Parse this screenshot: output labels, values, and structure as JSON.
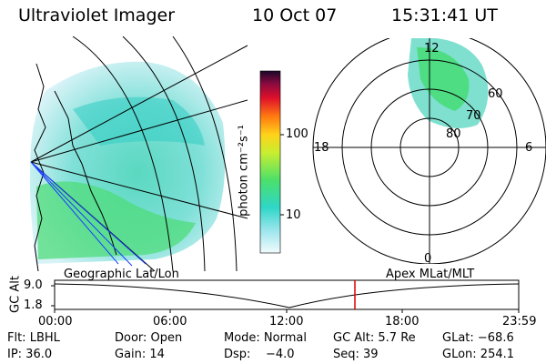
{
  "header": {
    "title": "Ultraviolet Imager",
    "date": "10 Oct 07",
    "time": "15:31:41 UT"
  },
  "colorbar": {
    "unit_label": "photon cm⁻²s⁻¹",
    "ticks": [
      "100",
      "10"
    ]
  },
  "panels": {
    "left_caption": "Geographic Lat/Lon",
    "right_caption": "Apex MLat/MLT",
    "mlt_labels": {
      "top": "12",
      "left": "18",
      "right": "6",
      "bottom": "0"
    },
    "mlat_labels": [
      "60",
      "70",
      "80"
    ]
  },
  "altitude_plot": {
    "ylabel": "GC Alt",
    "y_ticks": [
      "9.0",
      "1.8"
    ],
    "x_ticks": [
      "00:00",
      "06:00",
      "12:00",
      "18:00",
      "23:59"
    ],
    "marker_color": "#e00000"
  },
  "info": {
    "row1": {
      "filter": "Flt: LBHL",
      "door": "Door: Open",
      "mode": "Mode: Normal",
      "gc_alt": "GC Alt: 5.7 Re",
      "glat": "GLat: −68.6"
    },
    "row2": {
      "ip": "IP: 36.0",
      "gain": "Gain: 14",
      "dsp": "Dsp:    −4.0",
      "seq": "Seq: 39",
      "glon": "GLon: 254.1"
    }
  },
  "colors": {
    "aurora_dim": "#cfeef5",
    "aurora_mid": "#3fd6c8",
    "aurora_bright": "#44e070"
  }
}
